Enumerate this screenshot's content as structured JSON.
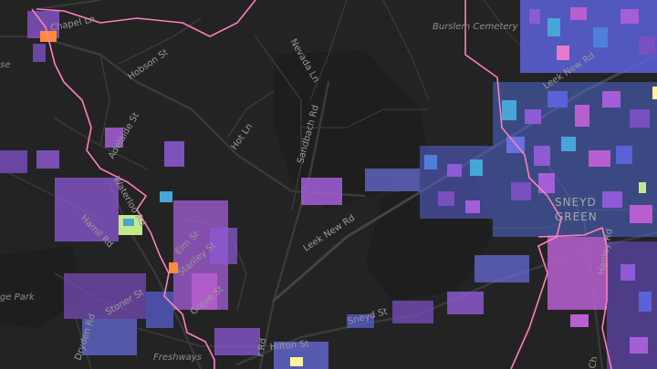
{
  "map": {
    "style": "dark",
    "colors": {
      "background": "#232323",
      "road": "#3a3a3a",
      "road_major": "#444444",
      "boundary": "#ff7fc0",
      "buildings": [
        "#7a4fc0",
        "#8e5ad6",
        "#a45fd8",
        "#b85fd0",
        "#5a62d8",
        "#4f7fdc",
        "#47a6d8",
        "#6a6fe0",
        "#e67acb",
        "#c5e88a",
        "#fff3a0",
        "#ff8a3a"
      ]
    },
    "area_labels": {
      "sneyd_green_line1": "SNEYD",
      "sneyd_green_line2": "GREEN"
    },
    "place_labels": {
      "burslem_cemetery": "Burslem Cemetery",
      "freshways": "Freshways",
      "park": "ge Park",
      "se": "se"
    },
    "road_labels": {
      "chapel_ln": "Chapel Ln",
      "hobson_st": "Hobson St",
      "nevada_ln": "Nevada Ln",
      "sandbach_rd": "Sandbach Rd",
      "leek_new_rd_ne": "Leek New Rd",
      "leek_new_rd": "Leek New Rd",
      "adelaide_st": "Adelaide St",
      "hot_ln": "Hot Ln",
      "waterloo_rd": "Waterloo Rd",
      "bournes_bank": "Hamil Rd",
      "elm_st": "Elm St",
      "stanley": "Stanley St",
      "stoner_st": "Stoner St",
      "grove_st": "Grove St",
      "dryden_rd": "Dryden Rd",
      "sneyd_st": "Sneyd St",
      "hilton_st": "Hilton St",
      "hamil_rd": "Hamil Rd",
      "hanley_rd": "Hanley Rd",
      "r_rd": "r Rd",
      "chest": "St",
      "ch": "Ch",
      "waterloo2": "Waterloo",
      "ore_rd": "e Rd"
    }
  }
}
